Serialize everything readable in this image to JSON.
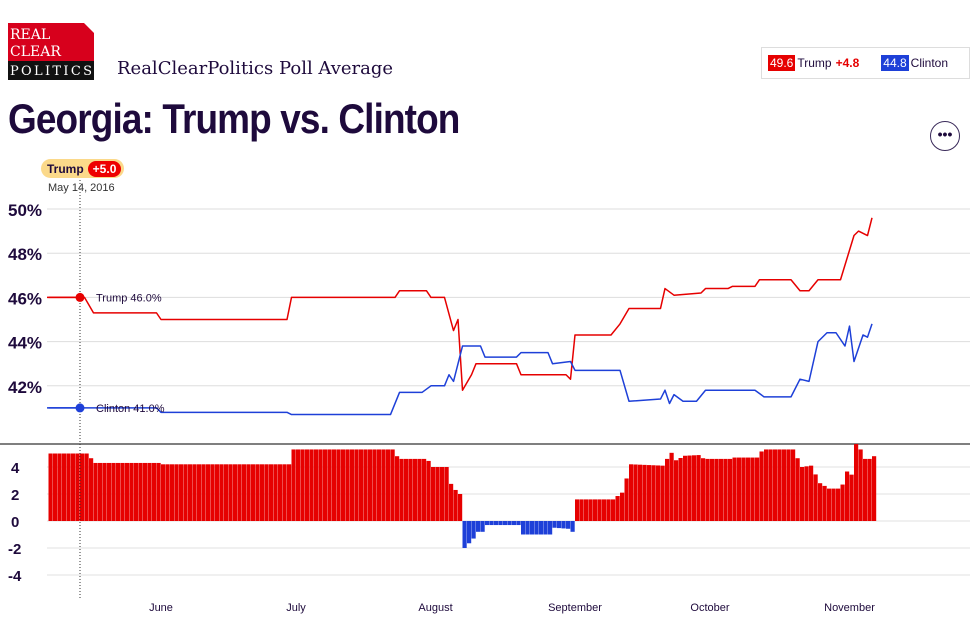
{
  "logo": {
    "lines": [
      "REAL",
      "CLEAR",
      "POLITICS"
    ]
  },
  "subtitle": "RealClearPolitics Poll Average",
  "title": "Georgia: Trump vs. Clinton",
  "legend": {
    "trump_value": "49.6",
    "trump_name": "Trump",
    "trump_spread": "+4.8",
    "clinton_value": "44.8",
    "clinton_name": "Clinton"
  },
  "more_button": "•••",
  "tooltip": {
    "leader": "Trump",
    "spread": "+5.0",
    "date": "May 14, 2016",
    "trump_label": "Trump 46.0%",
    "clinton_label": "Clinton 41.0%"
  },
  "colors": {
    "trump": "#e60000",
    "clinton": "#1e40d8",
    "text": "#1e0a3c"
  },
  "chart_data": [
    {
      "type": "line",
      "ylim": [
        40,
        50
      ],
      "yticks": [
        "50%",
        "48%",
        "46%",
        "44%",
        "42%"
      ],
      "ytick_values": [
        50,
        48,
        46,
        44,
        42
      ],
      "grid": true,
      "xticks": [
        "June",
        "July",
        "August",
        "September",
        "October",
        "November"
      ],
      "xtick_dates": [
        "2016-06-01",
        "2016-07-01",
        "2016-08-01",
        "2016-09-01",
        "2016-10-01",
        "2016-11-01"
      ],
      "series": [
        {
          "name": "Trump",
          "color": "#e60000",
          "points": [
            [
              "2016-05-07",
              46.0
            ],
            [
              "2016-05-15",
              46.0
            ],
            [
              "2016-05-17",
              45.3
            ],
            [
              "2016-05-31",
              45.3
            ],
            [
              "2016-06-01",
              45.0
            ],
            [
              "2016-06-29",
              45.0
            ],
            [
              "2016-06-30",
              46.0
            ],
            [
              "2016-07-23",
              46.0
            ],
            [
              "2016-07-24",
              46.3
            ],
            [
              "2016-07-30",
              46.3
            ],
            [
              "2016-07-31",
              46.0
            ],
            [
              "2016-08-03",
              46.0
            ],
            [
              "2016-08-05",
              44.5
            ],
            [
              "2016-08-06",
              45.0
            ],
            [
              "2016-08-07",
              41.8
            ],
            [
              "2016-08-09",
              42.5
            ],
            [
              "2016-08-10",
              43.0
            ],
            [
              "2016-08-19",
              43.0
            ],
            [
              "2016-08-20",
              42.5
            ],
            [
              "2016-08-30",
              42.5
            ],
            [
              "2016-08-31",
              42.3
            ],
            [
              "2016-09-01",
              44.3
            ],
            [
              "2016-09-09",
              44.3
            ],
            [
              "2016-09-11",
              44.8
            ],
            [
              "2016-09-13",
              45.5
            ],
            [
              "2016-09-20",
              45.5
            ],
            [
              "2016-09-21",
              46.4
            ],
            [
              "2016-09-23",
              46.1
            ],
            [
              "2016-09-29",
              46.2
            ],
            [
              "2016-09-30",
              46.4
            ],
            [
              "2016-10-05",
              46.4
            ],
            [
              "2016-10-06",
              46.5
            ],
            [
              "2016-10-11",
              46.5
            ],
            [
              "2016-10-12",
              46.8
            ],
            [
              "2016-10-19",
              46.8
            ],
            [
              "2016-10-21",
              46.3
            ],
            [
              "2016-10-23",
              46.3
            ],
            [
              "2016-10-25",
              46.8
            ],
            [
              "2016-10-30",
              46.8
            ],
            [
              "2016-11-02",
              48.8
            ],
            [
              "2016-11-03",
              49.0
            ],
            [
              "2016-11-05",
              48.8
            ],
            [
              "2016-11-06",
              49.6
            ]
          ]
        },
        {
          "name": "Clinton",
          "color": "#1e40d8",
          "points": [
            [
              "2016-05-07",
              41.0
            ],
            [
              "2016-05-31",
              41.0
            ],
            [
              "2016-06-01",
              40.8
            ],
            [
              "2016-06-29",
              40.8
            ],
            [
              "2016-06-30",
              40.7
            ],
            [
              "2016-07-22",
              40.7
            ],
            [
              "2016-07-24",
              41.7
            ],
            [
              "2016-07-29",
              41.7
            ],
            [
              "2016-07-31",
              42.0
            ],
            [
              "2016-08-03",
              42.0
            ],
            [
              "2016-08-04",
              42.5
            ],
            [
              "2016-08-05",
              42.2
            ],
            [
              "2016-08-07",
              43.8
            ],
            [
              "2016-08-11",
              43.8
            ],
            [
              "2016-08-12",
              43.3
            ],
            [
              "2016-08-19",
              43.3
            ],
            [
              "2016-08-20",
              43.5
            ],
            [
              "2016-08-26",
              43.5
            ],
            [
              "2016-08-27",
              43.0
            ],
            [
              "2016-08-31",
              43.1
            ],
            [
              "2016-09-01",
              42.7
            ],
            [
              "2016-09-11",
              42.7
            ],
            [
              "2016-09-13",
              41.3
            ],
            [
              "2016-09-20",
              41.4
            ],
            [
              "2016-09-21",
              41.8
            ],
            [
              "2016-09-22",
              41.2
            ],
            [
              "2016-09-23",
              41.6
            ],
            [
              "2016-09-25",
              41.3
            ],
            [
              "2016-09-28",
              41.3
            ],
            [
              "2016-09-30",
              41.8
            ],
            [
              "2016-10-11",
              41.8
            ],
            [
              "2016-10-13",
              41.5
            ],
            [
              "2016-10-19",
              41.5
            ],
            [
              "2016-10-21",
              42.3
            ],
            [
              "2016-10-23",
              42.2
            ],
            [
              "2016-10-25",
              44.0
            ],
            [
              "2016-10-27",
              44.4
            ],
            [
              "2016-10-29",
              44.4
            ],
            [
              "2016-10-31",
              43.8
            ],
            [
              "2016-11-01",
              44.7
            ],
            [
              "2016-11-02",
              43.1
            ],
            [
              "2016-11-04",
              44.3
            ],
            [
              "2016-11-05",
              44.2
            ],
            [
              "2016-11-06",
              44.8
            ]
          ]
        }
      ]
    },
    {
      "type": "bar",
      "description_of_values": "Trump minus Clinton spread",
      "yticks": [
        "4",
        "2",
        "0",
        "-2",
        "-4"
      ],
      "ytick_values": [
        4,
        2,
        0,
        -2,
        -4
      ],
      "grid": true,
      "positive_color": "#e60000",
      "negative_color": "#1e40d8"
    }
  ]
}
